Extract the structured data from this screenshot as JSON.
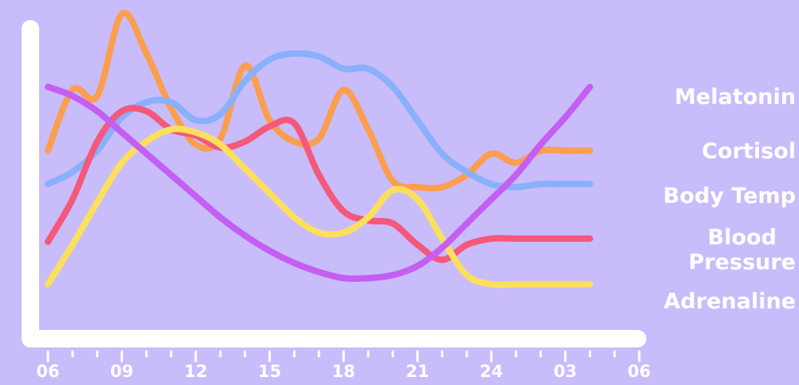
{
  "chart_data": {
    "type": "line",
    "title": "",
    "xlabel": "",
    "ylabel": "",
    "x_ticks": [
      "06",
      "09",
      "12",
      "15",
      "18",
      "21",
      "24",
      "03",
      "06"
    ],
    "x": [
      6,
      7,
      8,
      9,
      10,
      11,
      12,
      13,
      14,
      15,
      16,
      17,
      18,
      19,
      20,
      21,
      22,
      23,
      24,
      25,
      26,
      27,
      28,
      29,
      30
    ],
    "xlim": [
      6,
      30
    ],
    "ylim": [
      0,
      100
    ],
    "grid": false,
    "legend_position": "right",
    "series": [
      {
        "name": "Melatonin",
        "color": "#c55ef2",
        "values": [
          74,
          71,
          66,
          59,
          52,
          45,
          38,
          31,
          25,
          20,
          16,
          13,
          11,
          11,
          12,
          15,
          21,
          29,
          37,
          45,
          55,
          64,
          74,
          null,
          null
        ]
      },
      {
        "name": "Cortisol",
        "color": "#fb9e4e",
        "values": [
          53,
          73,
          71,
          98,
          85,
          67,
          55,
          57,
          81,
          63,
          56,
          57,
          73,
          60,
          43,
          41,
          41,
          45,
          52,
          49,
          53,
          53,
          53,
          null,
          null
        ]
      },
      {
        "name": "Body Temp",
        "color": "#89b0fa",
        "values": [
          42,
          46,
          53,
          64,
          69,
          69,
          63,
          65,
          76,
          83,
          85,
          84,
          80,
          80,
          74,
          63,
          52,
          46,
          42,
          41,
          42,
          42,
          42,
          null,
          null
        ]
      },
      {
        "name": "Blood Pressure",
        "color": "#f4587b",
        "values": [
          23,
          37,
          56,
          66,
          66,
          60,
          58,
          54,
          56,
          61,
          62,
          45,
          33,
          30,
          29,
          22,
          17,
          22,
          24,
          24,
          24,
          24,
          24,
          null,
          null
        ]
      },
      {
        "name": "Adrenaline",
        "color": "#fddf5e",
        "values": [
          9,
          22,
          36,
          49,
          56,
          60,
          59,
          55,
          47,
          39,
          31,
          26,
          26,
          31,
          40,
          37,
          24,
          12,
          9,
          9,
          9,
          9,
          9,
          null,
          null
        ]
      }
    ]
  }
}
